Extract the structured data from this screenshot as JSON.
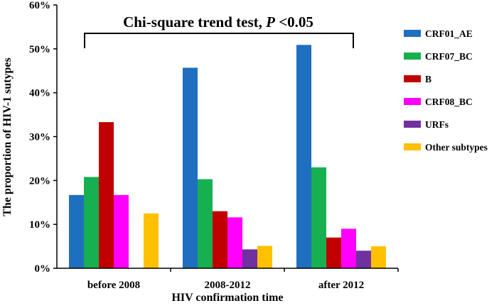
{
  "chart_data": {
    "type": "bar",
    "title": "",
    "xlabel": "HIV confirmation time",
    "ylabel": "The  proportion of HIV-1 sutypes",
    "categories": [
      "before 2008",
      "2008-2012",
      "after 2012"
    ],
    "ylim": [
      0,
      60
    ],
    "yticks": [
      "0%",
      "10%",
      "20%",
      "30%",
      "40%",
      "50%",
      "60%"
    ],
    "grid": false,
    "legend_position": "right",
    "annotation": {
      "text": "Chi-square trend test, ",
      "italic": "P",
      "suffix": " <0.05"
    },
    "series": [
      {
        "name": "CRF01_AE",
        "color": "#1F6FC0",
        "values": [
          16.7,
          45.7,
          50.9
        ]
      },
      {
        "name": "CRF07_BC",
        "color": "#17B050",
        "values": [
          20.8,
          20.3,
          23.0
        ]
      },
      {
        "name": "B",
        "color": "#C00000",
        "values": [
          33.3,
          13.0,
          7.0
        ]
      },
      {
        "name": "CRF08_BC",
        "color": "#FF00FF",
        "values": [
          16.7,
          11.6,
          9.0
        ]
      },
      {
        "name": "URFs",
        "color": "#7030A0",
        "values": [
          0,
          4.3,
          4.0
        ]
      },
      {
        "name": "Other subtypes",
        "color": "#FFC000",
        "values": [
          12.5,
          5.1,
          5.0
        ]
      }
    ]
  }
}
